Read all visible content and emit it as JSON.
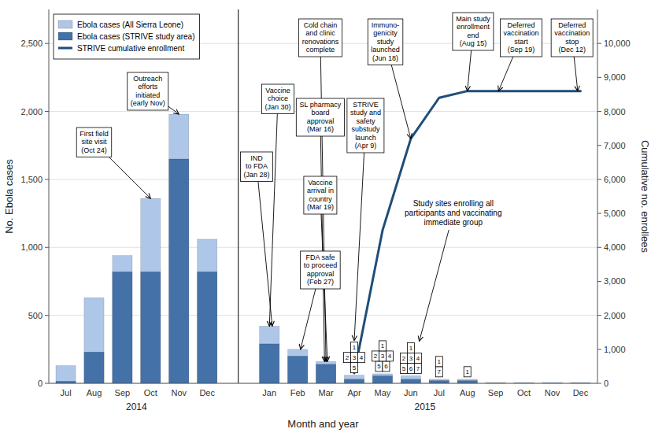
{
  "chart_data": {
    "type": "bar",
    "categories": [
      "Jul",
      "Aug",
      "Sep",
      "Oct",
      "Nov",
      "Dec",
      "Jan",
      "Feb",
      "Mar",
      "Apr",
      "May",
      "Jun",
      "Jul",
      "Aug",
      "Sep",
      "Oct",
      "Nov",
      "Dec"
    ],
    "groups": [
      {
        "label": "2014",
        "count": 6
      },
      {
        "label": "2015",
        "count": 12
      }
    ],
    "xlabel": "Month and year",
    "ylabel": "No. Ebola cases",
    "y2label": "Cumulative no. enrollees",
    "ylim": [
      0,
      2750
    ],
    "yticks": [
      0,
      500,
      {
        "value": 1000,
        "label": "1,000"
      },
      {
        "value": 1500,
        "label": "1,500"
      },
      {
        "value": 2000,
        "label": "2,000"
      },
      {
        "value": 2500,
        "label": "2,500"
      }
    ],
    "y2lim": [
      0,
      11000
    ],
    "y2ticks": [
      0,
      {
        "value": 1000,
        "label": "1,000"
      },
      {
        "value": 2000,
        "label": "2,000"
      },
      {
        "value": 3000,
        "label": "3,000"
      },
      {
        "value": 4000,
        "label": "4,000"
      },
      {
        "value": 5000,
        "label": "5,000"
      },
      {
        "value": 6000,
        "label": "6,000"
      },
      {
        "value": 7000,
        "label": "7,000"
      },
      {
        "value": 8000,
        "label": "8,000"
      },
      {
        "value": 9000,
        "label": "9,000"
      },
      {
        "value": 10000,
        "label": "10,000"
      }
    ],
    "grid": true,
    "legend": "upper left",
    "stacked": false,
    "series": [
      {
        "name": "Ebola cases (All Sierra Leone)",
        "type": "bar",
        "color": "#aec6e8",
        "values": [
          130,
          630,
          940,
          1360,
          1980,
          1060,
          420,
          250,
          160,
          60,
          70,
          55,
          30,
          30,
          5,
          5,
          5,
          5
        ]
      },
      {
        "name": "Ebola cases (STRIVE study area)",
        "type": "bar",
        "color": "#4472a8",
        "values": [
          15,
          230,
          820,
          820,
          1650,
          820,
          290,
          200,
          140,
          30,
          55,
          30,
          20,
          20,
          3,
          3,
          3,
          3
        ]
      },
      {
        "name": "STRIVE cumulative enrollment",
        "type": "line",
        "axis": "y2",
        "color": "#1f4e79",
        "values": [
          null,
          null,
          null,
          null,
          null,
          null,
          null,
          null,
          null,
          300,
          4500,
          7200,
          8400,
          8600,
          8600,
          8600,
          8600,
          8600
        ]
      }
    ],
    "annotations": [
      {
        "text": "First field\nsite visit\n(Oct 24)"
      },
      {
        "text": "Outreach\nefforts\ninitiated\n(early Nov)"
      },
      {
        "text": "Vaccine\nchoice\n(Jan 30)"
      },
      {
        "text": "IND\nto FDA\n(Jan 28)"
      },
      {
        "text": "Cold chain\nand clinic\nrenovations\ncomplete"
      },
      {
        "text": "SL pharmacy\nboard\napproval\n(Mar 16)"
      },
      {
        "text": "Vaccine\narrival in\ncountry\n(Mar 19)"
      },
      {
        "text": "FDA safe\nto proceed\napproval\n(Feb 27)"
      },
      {
        "text": "STRIVE\nstudy and\nsafety\nsubstudy\nlaunch\n(Apr 9)"
      },
      {
        "text": "Immuno-\ngenicity\nstudy\nlaunched\n(Jun 18)"
      },
      {
        "text": "Main study\nenrollment\nend\n(Aug 15)"
      },
      {
        "text": "Deferred\nvaccination\nstart\n(Sep 19)"
      },
      {
        "text": "Deferred\nvaccination\nstop\n(Dec 12)"
      },
      {
        "text": "Study sites enrolling all\nparticipants and vaccinating\nimmediate group"
      }
    ],
    "site_labels": [
      {
        "rows": [
          [
            5
          ],
          [
            2,
            3,
            4
          ],
          [
            1
          ]
        ]
      },
      {
        "rows": [
          [
            5,
            6
          ],
          [
            2,
            3,
            4
          ],
          [
            1
          ]
        ]
      },
      {
        "rows": [
          [
            5,
            6,
            7
          ],
          [
            2,
            3,
            4
          ],
          [
            1
          ]
        ]
      },
      {
        "rows": [
          [
            7
          ],
          [
            1
          ]
        ]
      },
      {
        "rows": [
          [
            1
          ]
        ]
      }
    ]
  }
}
